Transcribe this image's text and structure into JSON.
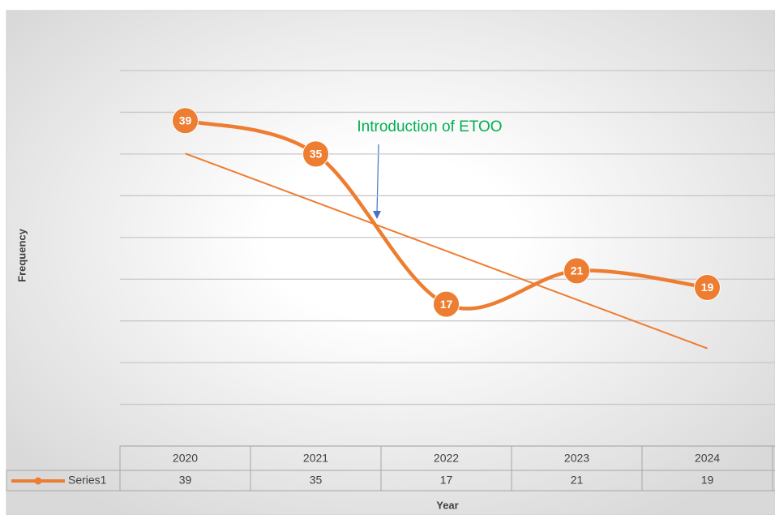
{
  "chart_data": {
    "type": "line",
    "x_label": "Year",
    "y_label": "Frequency",
    "categories": [
      "2020",
      "2021",
      "2022",
      "2023",
      "2024"
    ],
    "series": [
      {
        "name": "Series1",
        "color": "#ed7d31",
        "values": [
          39,
          35,
          17,
          21,
          19
        ]
      }
    ],
    "ylim": [
      0,
      45
    ],
    "yticks": [
      0,
      5,
      10,
      15,
      20,
      25,
      30,
      35,
      40,
      45
    ],
    "grid": true,
    "smooth": true,
    "trendline": true,
    "data_labels": true,
    "data_table": true,
    "annotation": {
      "text": "Introduction of ETOO",
      "color": "#00b050"
    }
  }
}
